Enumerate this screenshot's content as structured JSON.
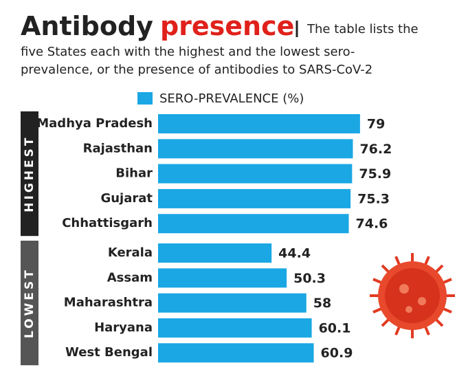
{
  "chart_data": {
    "type": "bar",
    "orientation": "horizontal",
    "title": [
      "Antibody",
      "presence"
    ],
    "subtitle": [
      "The table lists the",
      "five States each with the highest and the lowest sero-",
      "prevalence, or the presence of antibodies to SARS-CoV-2"
    ],
    "legend": "SERO-PREVALENCE (%)",
    "color": "#1aa7e4",
    "xlim": [
      0,
      100
    ],
    "groups": [
      {
        "name": "HIGHEST",
        "color": "#222222",
        "categories": [
          "Madhya Pradesh",
          "Rajasthan",
          "Bihar",
          "Gujarat",
          "Chhattisgarh"
        ],
        "values": [
          79,
          76.2,
          75.9,
          75.3,
          74.6
        ]
      },
      {
        "name": "LOWEST",
        "color": "#555555",
        "categories": [
          "Kerala",
          "Assam",
          "Maharashtra",
          "Haryana",
          "West Bengal"
        ],
        "values": [
          44.4,
          50.3,
          58,
          60.1,
          60.9
        ]
      }
    ]
  }
}
